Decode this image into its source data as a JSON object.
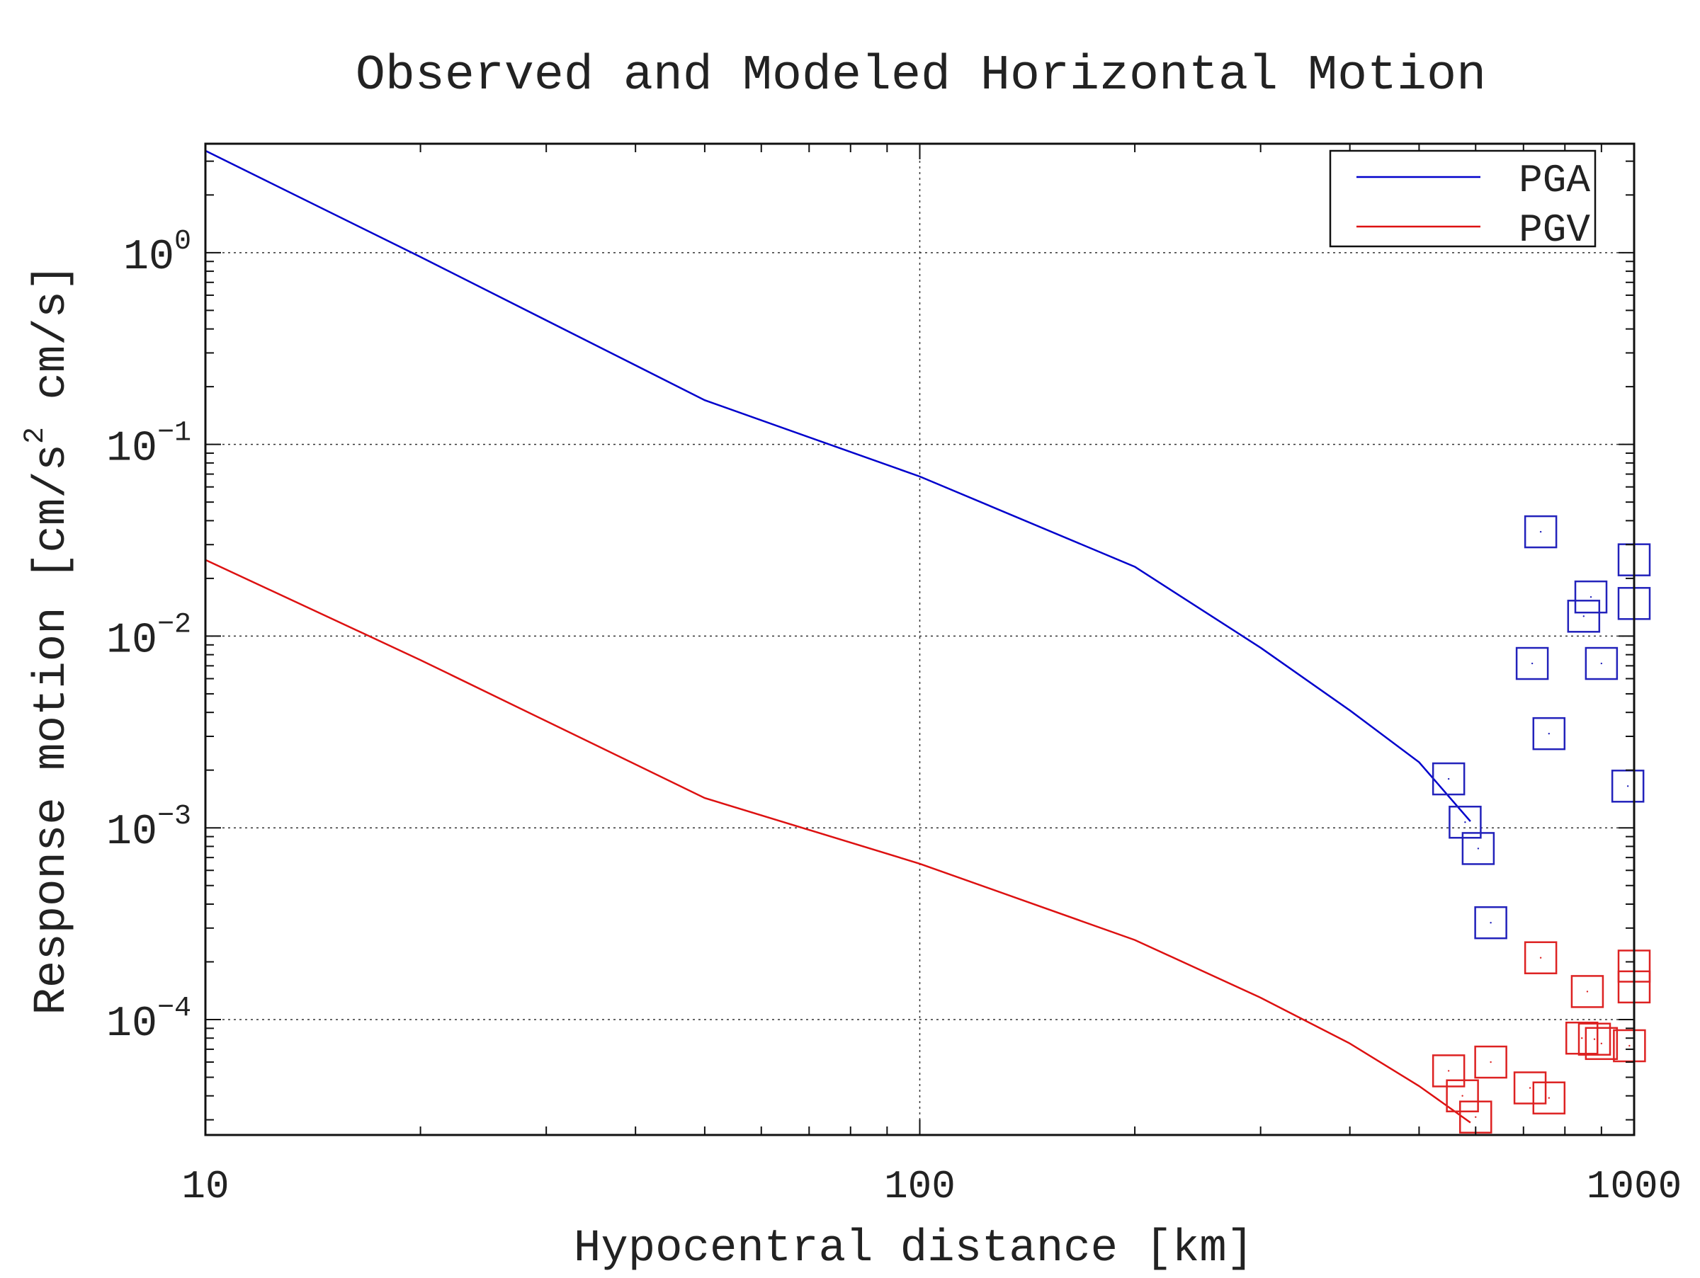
{
  "chart_data": {
    "type": "line",
    "title": "Observed and Modeled Horizontal Motion",
    "xlabel": "Hypocentral distance [km]",
    "ylabel": {
      "prefix": "Response motion  [cm/s",
      "sup": "2",
      "suffix": "  cm/s]"
    },
    "x_scale": "log",
    "y_scale": "log",
    "xlim": [
      10,
      1000
    ],
    "ylim": [
      2.5e-05,
      3.7
    ],
    "grid": true,
    "legend_position": "top-right",
    "x_ticks": [
      {
        "value": 10,
        "label": "10"
      },
      {
        "value": 100,
        "label": "100"
      },
      {
        "value": 1000,
        "label": "1000"
      }
    ],
    "y_ticks": [
      {
        "value": 1,
        "base": "10",
        "exp": "0"
      },
      {
        "value": 0.1,
        "base": "10",
        "exp": "−1"
      },
      {
        "value": 0.01,
        "base": "10",
        "exp": "−2"
      },
      {
        "value": 0.001,
        "base": "10",
        "exp": "−3"
      },
      {
        "value": 0.0001,
        "base": "10",
        "exp": "−4"
      }
    ],
    "series": [
      {
        "name": "PGA",
        "color": "#0000cc",
        "kind": "model-line",
        "x": [
          10,
          20,
          50,
          100,
          200,
          300,
          400,
          500,
          590
        ],
        "y": [
          3.4,
          0.95,
          0.17,
          0.068,
          0.023,
          0.0087,
          0.0041,
          0.0022,
          0.00108
        ]
      },
      {
        "name": "PGV",
        "color": "#dd1111",
        "kind": "model-line",
        "x": [
          10,
          20,
          50,
          100,
          200,
          300,
          400,
          500,
          590
        ],
        "y": [
          0.025,
          0.0075,
          0.00143,
          0.00065,
          0.00026,
          0.00013,
          7.5e-05,
          4.5e-05,
          2.9e-05
        ]
      }
    ],
    "observed": [
      {
        "name": "PGA",
        "color": "#2222bb",
        "x": [
          550,
          580,
          605,
          630,
          720,
          740,
          760,
          850,
          870,
          900,
          980,
          1000,
          1000
        ],
        "y": [
          0.0018,
          0.00107,
          0.00078,
          0.00032,
          0.0072,
          0.035,
          0.0031,
          0.0127,
          0.016,
          0.0072,
          0.00165,
          0.025,
          0.0148
        ]
      },
      {
        "name": "PGV",
        "color": "#dd2222",
        "x": [
          550,
          575,
          600,
          630,
          715,
          740,
          760,
          845,
          860,
          880,
          900,
          985,
          1000,
          1000
        ],
        "y": [
          5.4e-05,
          4e-05,
          3.1e-05,
          6e-05,
          4.4e-05,
          0.00021,
          3.9e-05,
          8e-05,
          0.00014,
          7.9e-05,
          7.5e-05,
          7.3e-05,
          0.00019,
          0.000148
        ]
      }
    ]
  }
}
